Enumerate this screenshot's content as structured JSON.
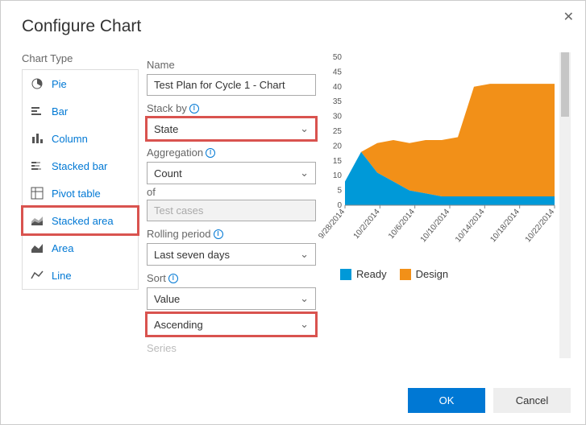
{
  "dialog": {
    "title": "Configure Chart",
    "ok": "OK",
    "cancel": "Cancel"
  },
  "chart_types": {
    "label": "Chart Type",
    "items": [
      {
        "id": "pie",
        "label": "Pie"
      },
      {
        "id": "bar",
        "label": "Bar"
      },
      {
        "id": "column",
        "label": "Column"
      },
      {
        "id": "stacked-bar",
        "label": "Stacked bar"
      },
      {
        "id": "pivot-table",
        "label": "Pivot table"
      },
      {
        "id": "stacked-area",
        "label": "Stacked area",
        "selected": true
      },
      {
        "id": "area",
        "label": "Area"
      },
      {
        "id": "line",
        "label": "Line"
      }
    ]
  },
  "form": {
    "name_label": "Name",
    "name_value": "Test Plan for Cycle 1 - Chart",
    "stackby_label": "Stack by",
    "stackby_value": "State",
    "aggregation_label": "Aggregation",
    "aggregation_value": "Count",
    "of_label": "of",
    "of_value": "Test cases",
    "rolling_label": "Rolling period",
    "rolling_value": "Last seven days",
    "sort_label": "Sort",
    "sort_field": "Value",
    "sort_dir": "Ascending",
    "series_label": "Series"
  },
  "chart": {
    "type": "stacked-area",
    "y_ticks": [
      0,
      5,
      10,
      15,
      20,
      25,
      30,
      35,
      40,
      45,
      50
    ],
    "x_labels": [
      "9/28/2014",
      "10/2/2014",
      "10/6/2014",
      "10/10/2014",
      "10/14/2014",
      "10/18/2014",
      "10/22/2014"
    ],
    "series": [
      {
        "name": "Ready",
        "color": "#0099d8",
        "values": [
          8,
          18,
          11,
          8,
          5,
          4,
          3,
          3,
          3,
          3,
          3,
          3,
          3,
          3
        ]
      },
      {
        "name": "Design",
        "color": "#f29018",
        "values": [
          0,
          0,
          10,
          14,
          16,
          18,
          19,
          20,
          37,
          38,
          38,
          38,
          38,
          38
        ]
      }
    ],
    "grid_color": "#cccccc",
    "axis_color": "#888888",
    "tick_font_size": 10,
    "y_max": 50
  },
  "legend": {
    "items": [
      {
        "label": "Ready",
        "color": "#0099d8"
      },
      {
        "label": "Design",
        "color": "#f29018"
      }
    ]
  }
}
